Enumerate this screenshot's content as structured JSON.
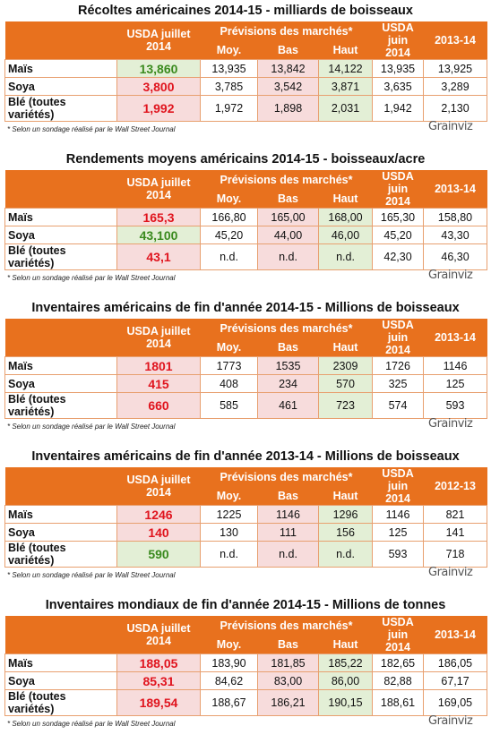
{
  "styles": {
    "green": {
      "text": "#3a8a1e",
      "fill": "#e3efd6"
    },
    "red": {
      "text": "#e0141e",
      "fill": "#f7dcdc"
    }
  },
  "tables": [
    {
      "title": "Récoltes américaines 2014-15 - milliards de boisseaux",
      "header": {
        "usda_juillet": [
          "USDA juillet",
          "2014"
        ],
        "previsions": "Prévisions des marchés*",
        "sub": [
          "Moy.",
          "Bas",
          "Haut"
        ],
        "usda_juin": [
          "USDA juin",
          "2014"
        ],
        "last": "2013-14"
      },
      "rows": [
        [
          "Maïs",
          "13,860",
          "13,935",
          "13,842",
          "14,122",
          "13,935",
          "13,925"
        ],
        [
          "Soya",
          "3,800",
          "3,785",
          "3,542",
          "3,871",
          "3,635",
          "3,289"
        ],
        [
          "Blé (toutes variétés)",
          "1,992",
          "1,972",
          "1,898",
          "2,031",
          "1,942",
          "2,130"
        ]
      ],
      "juillet_color": [
        "green",
        "red",
        "red"
      ],
      "footnote": "* Selon un sondage réalisé par le Wall Street Journal",
      "logo": "Grainviz"
    },
    {
      "title": "Rendements moyens américains 2014-15 - boisseaux/acre",
      "header": {
        "usda_juillet": [
          "USDA juillet",
          "2014"
        ],
        "previsions": "Prévisions des marchés*",
        "sub": [
          "Moy.",
          "Bas",
          "Haut"
        ],
        "usda_juin": [
          "USDA juin",
          "2014"
        ],
        "last": "2013-14"
      },
      "rows": [
        [
          "Maïs",
          "165,3",
          "166,80",
          "165,00",
          "168,00",
          "165,30",
          "158,80"
        ],
        [
          "Soya",
          "43,100",
          "45,20",
          "44,00",
          "46,00",
          "45,20",
          "43,30"
        ],
        [
          "Blé (toutes variétés)",
          "43,1",
          "n.d.",
          "n.d.",
          "n.d.",
          "42,30",
          "46,30"
        ]
      ],
      "juillet_color": [
        "red",
        "green",
        "red"
      ],
      "footnote": "* Selon un sondage réalisé par le Wall Street Journal",
      "logo": "Grainviz"
    },
    {
      "title": "Inventaires américains de fin d'année 2014-15 - Millions de boisseaux",
      "header": {
        "usda_juillet": [
          "USDA juillet",
          "2014"
        ],
        "previsions": "Prévisions des marchés*",
        "sub": [
          "Moy.",
          "Bas",
          "Haut"
        ],
        "usda_juin": [
          "USDA juin",
          "2014"
        ],
        "last": "2013-14"
      },
      "rows": [
        [
          "Maïs",
          "1801",
          "1773",
          "1535",
          "2309",
          "1726",
          "1146"
        ],
        [
          "Soya",
          "415",
          "408",
          "234",
          "570",
          "325",
          "125"
        ],
        [
          "Blé (toutes variétés)",
          "660",
          "585",
          "461",
          "723",
          "574",
          "593"
        ]
      ],
      "juillet_color": [
        "red",
        "red",
        "red"
      ],
      "footnote": "* Selon un sondage réalisé par le Wall Street Journal",
      "logo": "Grainviz"
    },
    {
      "title": "Inventaires américains de fin d'année 2013-14 - Millions de boisseaux",
      "header": {
        "usda_juillet": [
          "USDA juillet",
          "2014"
        ],
        "previsions": "Prévisions des marchés*",
        "sub": [
          "Moy.",
          "Bas",
          "Haut"
        ],
        "usda_juin": [
          "USDA juin",
          "2014"
        ],
        "last": "2012-13"
      },
      "rows": [
        [
          "Maïs",
          "1246",
          "1225",
          "1146",
          "1296",
          "1146",
          "821"
        ],
        [
          "Soya",
          "140",
          "130",
          "111",
          "156",
          "125",
          "141"
        ],
        [
          "Blé (toutes variétés)",
          "590",
          "n.d.",
          "n.d.",
          "n.d.",
          "593",
          "718"
        ]
      ],
      "juillet_color": [
        "red",
        "red",
        "green"
      ],
      "footnote": "* Selon un sondage réalisé par le Wall Street Journal",
      "logo": "Grainviz"
    },
    {
      "title": "Inventaires mondiaux de fin d'année 2014-15 - Millions de tonnes",
      "header": {
        "usda_juillet": [
          "USDA juillet",
          "2014"
        ],
        "previsions": "Prévisions des marchés*",
        "sub": [
          "Moy.",
          "Bas",
          "Haut"
        ],
        "usda_juin": [
          "USDA juin",
          "2014"
        ],
        "last": "2013-14"
      },
      "rows": [
        [
          "Maïs",
          "188,05",
          "183,90",
          "181,85",
          "185,22",
          "182,65",
          "186,05"
        ],
        [
          "Soya",
          "85,31",
          "84,62",
          "83,00",
          "86,00",
          "82,88",
          "67,17"
        ],
        [
          "Blé (toutes variétés)",
          "189,54",
          "188,67",
          "186,21",
          "190,15",
          "188,61",
          "169,05"
        ]
      ],
      "juillet_color": [
        "red",
        "red",
        "red"
      ],
      "footnote": "* Selon un sondage réalisé par le Wall Street Journal",
      "logo": "Grainviz"
    }
  ]
}
